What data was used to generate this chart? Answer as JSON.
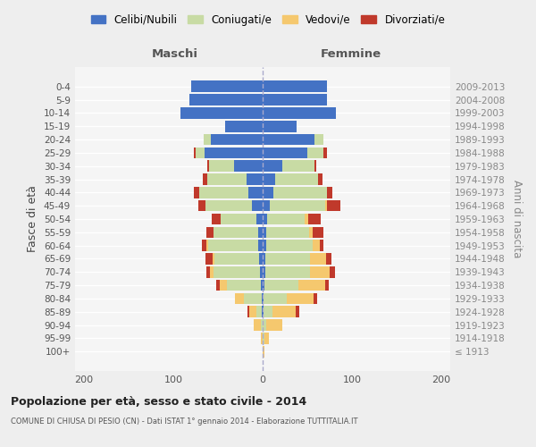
{
  "age_groups": [
    "100+",
    "95-99",
    "90-94",
    "85-89",
    "80-84",
    "75-79",
    "70-74",
    "65-69",
    "60-64",
    "55-59",
    "50-54",
    "45-49",
    "40-44",
    "35-39",
    "30-34",
    "25-29",
    "20-24",
    "15-19",
    "10-14",
    "5-9",
    "0-4"
  ],
  "birth_years": [
    "≤ 1913",
    "1914-1918",
    "1919-1923",
    "1924-1928",
    "1929-1933",
    "1934-1938",
    "1939-1943",
    "1944-1948",
    "1949-1953",
    "1954-1958",
    "1959-1963",
    "1964-1968",
    "1969-1973",
    "1974-1978",
    "1979-1983",
    "1984-1988",
    "1989-1993",
    "1994-1998",
    "1999-2003",
    "2004-2008",
    "2009-2013"
  ],
  "males_celibi": [
    0,
    0,
    0,
    1,
    1,
    2,
    3,
    4,
    5,
    5,
    7,
    12,
    16,
    18,
    32,
    65,
    58,
    42,
    92,
    82,
    80
  ],
  "males_coniugati": [
    0,
    0,
    2,
    6,
    20,
    38,
    52,
    50,
    56,
    50,
    40,
    52,
    55,
    44,
    28,
    10,
    8,
    0,
    0,
    0,
    0
  ],
  "males_vedovi": [
    0,
    2,
    8,
    8,
    10,
    8,
    4,
    2,
    2,
    0,
    0,
    0,
    0,
    0,
    0,
    0,
    0,
    0,
    0,
    0,
    0
  ],
  "males_divorziati": [
    0,
    0,
    0,
    2,
    0,
    4,
    4,
    8,
    5,
    8,
    10,
    8,
    6,
    5,
    2,
    2,
    0,
    0,
    0,
    0,
    0
  ],
  "females_nubili": [
    0,
    0,
    0,
    1,
    1,
    2,
    3,
    3,
    4,
    4,
    5,
    8,
    12,
    14,
    22,
    50,
    58,
    38,
    82,
    72,
    72
  ],
  "females_coniugate": [
    0,
    2,
    4,
    10,
    26,
    38,
    50,
    50,
    52,
    48,
    42,
    62,
    60,
    48,
    36,
    18,
    10,
    0,
    0,
    0,
    0
  ],
  "females_vedove": [
    2,
    5,
    18,
    26,
    30,
    30,
    22,
    18,
    8,
    4,
    4,
    2,
    0,
    0,
    0,
    0,
    0,
    0,
    0,
    0,
    0
  ],
  "females_divorziate": [
    0,
    0,
    0,
    4,
    4,
    4,
    6,
    6,
    4,
    12,
    14,
    15,
    6,
    5,
    2,
    4,
    0,
    0,
    0,
    0,
    0
  ],
  "col_celibi": "#4472c4",
  "col_coniugati": "#c8dba4",
  "col_vedovi": "#f5c86e",
  "col_divorziati": "#c0392b",
  "bg_color": "#eeeeee",
  "plot_bg": "#f5f5f5",
  "xlim": [
    -210,
    210
  ],
  "xticks": [
    -200,
    -100,
    0,
    100,
    200
  ],
  "xticklabels": [
    "200",
    "100",
    "0",
    "100",
    "200"
  ],
  "legend_labels": [
    "Celibi/Nubili",
    "Coniugati/e",
    "Vedovi/e",
    "Divorziati/e"
  ],
  "ylabel_left": "Fasce di età",
  "ylabel_right": "Anni di nascita",
  "label_maschi": "Maschi",
  "label_femmine": "Femmine",
  "title_main": "Popolazione per età, sesso e stato civile - 2014",
  "title_sub": "COMUNE DI CHIUSA DI PESIO (CN) - Dati ISTAT 1° gennaio 2014 - Elaborazione TUTTITALIA.IT"
}
